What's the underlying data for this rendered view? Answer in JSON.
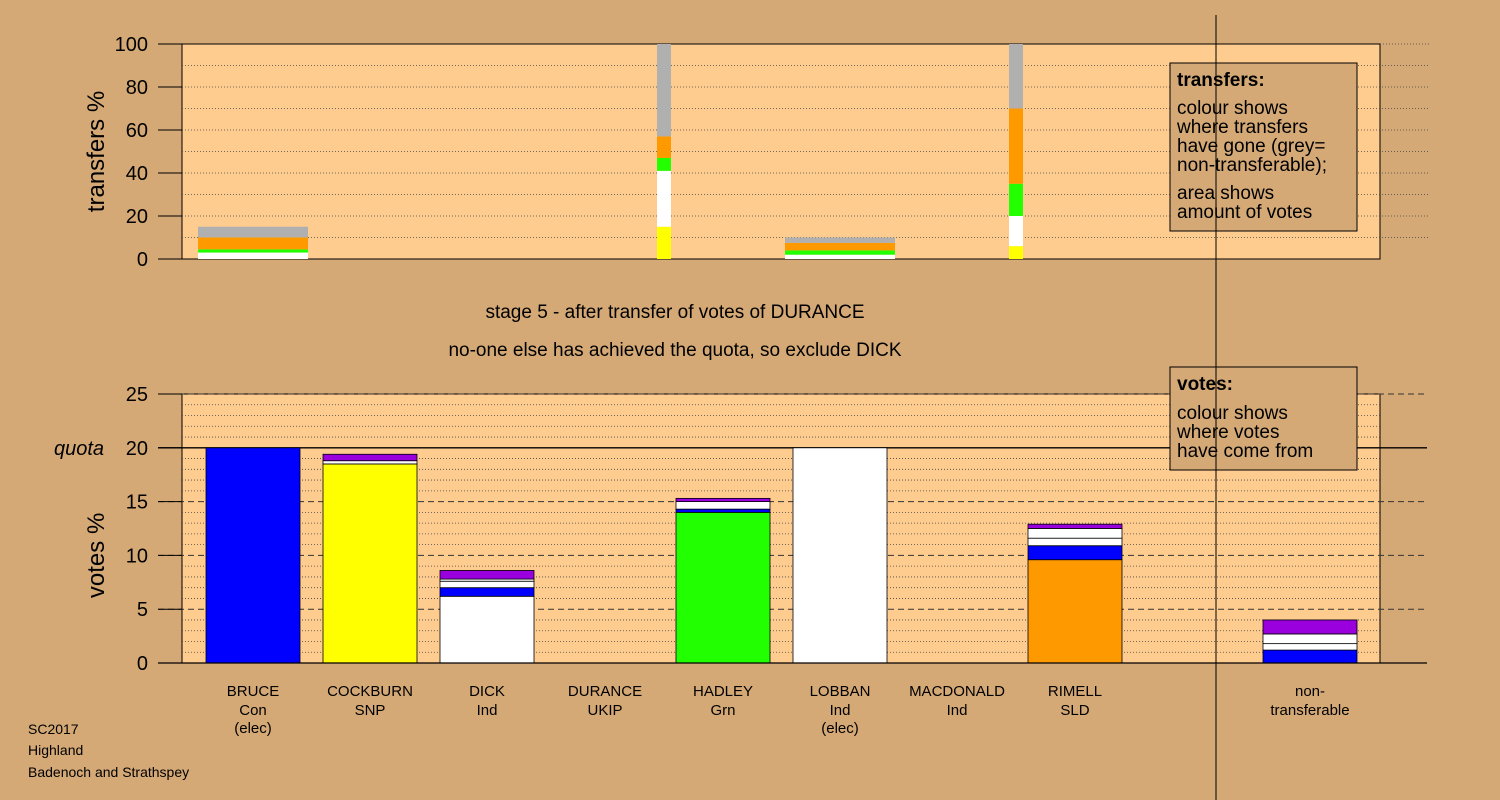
{
  "caption": {
    "line1": "stage 5 - after transfer of votes of DURANCE",
    "line2": "no-one else has achieved the quota, so exclude DICK"
  },
  "footer": {
    "line1": "SC2017",
    "line2": "Highland",
    "line3": "Badenoch and Strathspey"
  },
  "colors": {
    "background": "#d4a976",
    "plot": "#ffcc90",
    "Con": "#0000ff",
    "SNP": "#ffff00",
    "Ind": "#ffffff",
    "UKIP": "#9900dd",
    "Grn": "#22ff00",
    "SLD": "#ff9900",
    "nontransferable": "#b0b0b0"
  },
  "candidates": [
    {
      "name": "BRUCE",
      "party": "Con",
      "note": "(elec)"
    },
    {
      "name": "COCKBURN",
      "party": "SNP",
      "note": ""
    },
    {
      "name": "DICK",
      "party": "Ind",
      "note": ""
    },
    {
      "name": "DURANCE",
      "party": "UKIP",
      "note": ""
    },
    {
      "name": "HADLEY",
      "party": "Grn",
      "note": ""
    },
    {
      "name": "LOBBAN",
      "party": "Ind",
      "note": "(elec)"
    },
    {
      "name": "MACDONALD",
      "party": "Ind",
      "note": ""
    },
    {
      "name": "RIMELL",
      "party": "SLD",
      "note": ""
    },
    {
      "name": "non-",
      "party": "transferable",
      "note": ""
    }
  ],
  "chart_data": [
    {
      "type": "bar",
      "stacked": true,
      "ylabel": "transfers %",
      "ylim": [
        0,
        100
      ],
      "yticks": [
        0,
        20,
        40,
        60,
        80,
        100
      ],
      "grid": "dotted",
      "legend": {
        "title": "transfers:",
        "lines": [
          "colour shows",
          "where transfers",
          "have gone (grey=",
          "non-transferable);",
          "area shows",
          "amount of votes"
        ]
      },
      "bars": [
        {
          "column": 0,
          "width": "wide",
          "segments": [
            {
              "color": "Ind",
              "value": 3
            },
            {
              "color": "Grn",
              "value": 1.5
            },
            {
              "color": "SLD",
              "value": 5.5
            },
            {
              "color": "nontransferable",
              "value": 5
            }
          ]
        },
        {
          "column": 3.5,
          "width": "narrow",
          "segments": [
            {
              "color": "SNP",
              "value": 15
            },
            {
              "color": "Ind",
              "value": 26
            },
            {
              "color": "Grn",
              "value": 6
            },
            {
              "color": "SLD",
              "value": 10
            },
            {
              "color": "nontransferable",
              "value": 43
            }
          ]
        },
        {
          "column": 5,
          "width": "wide",
          "segments": [
            {
              "color": "Ind",
              "value": 2
            },
            {
              "color": "Grn",
              "value": 2
            },
            {
              "color": "SLD",
              "value": 3.5
            },
            {
              "color": "nontransferable",
              "value": 2.5
            }
          ]
        },
        {
          "column": 6.5,
          "width": "narrow",
          "segments": [
            {
              "color": "SNP",
              "value": 6
            },
            {
              "color": "Ind",
              "value": 14
            },
            {
              "color": "Grn",
              "value": 15
            },
            {
              "color": "SLD",
              "value": 35
            },
            {
              "color": "nontransferable",
              "value": 30
            }
          ]
        }
      ]
    },
    {
      "type": "bar",
      "stacked": true,
      "ylabel": "votes %",
      "ylim": [
        0,
        25
      ],
      "yticks": [
        0,
        5,
        10,
        15,
        20,
        25
      ],
      "quota": 20,
      "quota_label": "quota",
      "legend": {
        "title": "votes:",
        "lines": [
          "colour shows",
          "where votes",
          "have come from"
        ]
      },
      "bars": [
        {
          "column": 0,
          "segments": [
            {
              "color": "Con",
              "value": 20
            }
          ]
        },
        {
          "column": 1,
          "segments": [
            {
              "color": "SNP",
              "value": 18.5
            },
            {
              "color": "Ind",
              "value": 0.3
            },
            {
              "color": "UKIP",
              "value": 0.6
            }
          ]
        },
        {
          "column": 2,
          "segments": [
            {
              "color": "Ind",
              "value": 6.2
            },
            {
              "color": "Con",
              "value": 0.8
            },
            {
              "color": "Ind",
              "value": 0.6
            },
            {
              "color": "Ind",
              "value": 0.2
            },
            {
              "color": "UKIP",
              "value": 0.8
            }
          ]
        },
        {
          "column": 3,
          "segments": [
            {
              "color": "UKIP",
              "value": 0
            }
          ]
        },
        {
          "column": 4,
          "segments": [
            {
              "color": "Grn",
              "value": 14
            },
            {
              "color": "Con",
              "value": 0.3
            },
            {
              "color": "Ind",
              "value": 0.7
            },
            {
              "color": "UKIP",
              "value": 0.3
            }
          ]
        },
        {
          "column": 5,
          "segments": [
            {
              "color": "Ind",
              "value": 20
            }
          ]
        },
        {
          "column": 6,
          "segments": [
            {
              "color": "Ind",
              "value": 0
            }
          ]
        },
        {
          "column": 7,
          "segments": [
            {
              "color": "SLD",
              "value": 9.6
            },
            {
              "color": "Con",
              "value": 1.3
            },
            {
              "color": "Ind",
              "value": 0.7
            },
            {
              "color": "Ind",
              "value": 0.9
            },
            {
              "color": "UKIP",
              "value": 0.4
            }
          ]
        },
        {
          "column": 8,
          "segments": [
            {
              "color": "Con",
              "value": 1.2
            },
            {
              "color": "Ind",
              "value": 0.6
            },
            {
              "color": "Ind",
              "value": 0.9
            },
            {
              "color": "UKIP",
              "value": 1.3
            }
          ]
        }
      ]
    }
  ]
}
